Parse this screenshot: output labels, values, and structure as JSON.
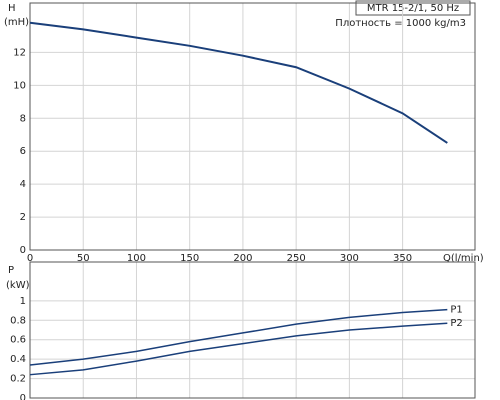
{
  "chart_data": [
    {
      "type": "line",
      "y_label": "H",
      "y_unit": "(mH)",
      "x_label": "Q(l/min)",
      "title": "MTR 15-2/1, 50 Hz",
      "subtitle": "Плотность = 1000 kg/m3",
      "x": [
        0,
        50,
        100,
        150,
        200,
        250,
        300,
        350,
        392
      ],
      "series": [
        {
          "name": "H",
          "color": "#1a3f7a",
          "values": [
            13.8,
            13.4,
            12.9,
            12.4,
            11.8,
            11.1,
            9.8,
            8.3,
            6.5
          ]
        }
      ],
      "xlim": [
        0,
        418
      ],
      "xticks": [
        0,
        50,
        100,
        150,
        200,
        250,
        300,
        350
      ],
      "ylim": [
        0,
        15
      ],
      "yticks": [
        0,
        2,
        4,
        6,
        8,
        10,
        12
      ],
      "grid": true
    },
    {
      "type": "line",
      "y_label": "P",
      "y_unit": "(kW)",
      "x": [
        0,
        50,
        100,
        150,
        200,
        250,
        300,
        350,
        392
      ],
      "series": [
        {
          "name": "P1",
          "color": "#1a3f7a",
          "values": [
            0.34,
            0.4,
            0.48,
            0.58,
            0.67,
            0.76,
            0.83,
            0.88,
            0.91
          ]
        },
        {
          "name": "P2",
          "color": "#1a3f7a",
          "values": [
            0.24,
            0.29,
            0.38,
            0.48,
            0.56,
            0.64,
            0.7,
            0.74,
            0.77
          ]
        }
      ],
      "xlim": [
        0,
        418
      ],
      "ylim": [
        0,
        1.4
      ],
      "yticks": [
        0,
        0.2,
        0.4,
        0.6,
        0.8,
        1
      ],
      "grid": true
    }
  ]
}
